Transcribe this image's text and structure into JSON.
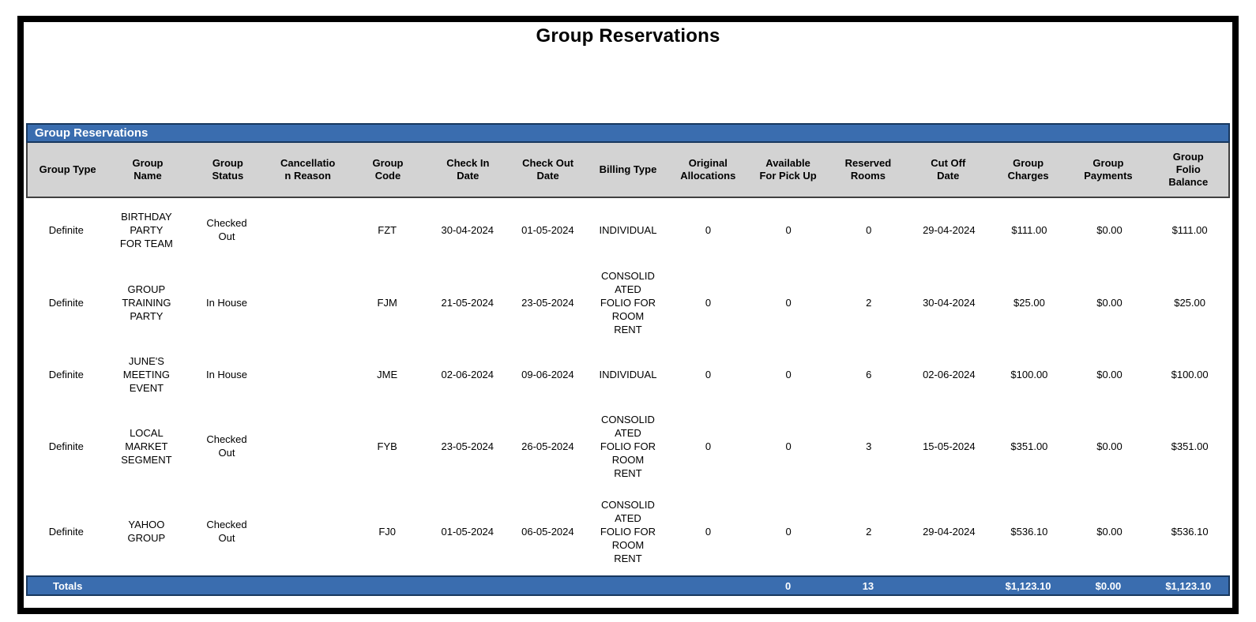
{
  "report": {
    "title": "Group Reservations",
    "section_header": "Group Reservations",
    "columns": [
      "Group Type",
      "Group\nName",
      "Group\nStatus",
      "Cancellatio\nn Reason",
      "Group\nCode",
      "Check In\nDate",
      "Check Out\nDate",
      "Billing Type",
      "Original\nAllocations",
      "Available\nFor Pick Up",
      "Reserved\nRooms",
      "Cut Off\nDate",
      "Group\nCharges",
      "Group\nPayments",
      "Group\nFolio\nBalance"
    ],
    "rows": [
      [
        "Definite",
        "BIRTHDAY\nPARTY\nFOR TEAM",
        "Checked\nOut",
        "",
        "FZT",
        "30-04-2024",
        "01-05-2024",
        "INDIVIDUAL",
        "0",
        "0",
        "0",
        "29-04-2024",
        "$111.00",
        "$0.00",
        "$111.00"
      ],
      [
        "Definite",
        "GROUP\nTRAINING\nPARTY",
        "In House",
        "",
        "FJM",
        "21-05-2024",
        "23-05-2024",
        "CONSOLID\nATED\nFOLIO FOR\nROOM\nRENT",
        "0",
        "0",
        "2",
        "30-04-2024",
        "$25.00",
        "$0.00",
        "$25.00"
      ],
      [
        "Definite",
        "JUNE'S\nMEETING\nEVENT",
        "In House",
        "",
        "JME",
        "02-06-2024",
        "09-06-2024",
        "INDIVIDUAL",
        "0",
        "0",
        "6",
        "02-06-2024",
        "$100.00",
        "$0.00",
        "$100.00"
      ],
      [
        "Definite",
        "LOCAL\nMARKET\nSEGMENT",
        "Checked\nOut",
        "",
        "FYB",
        "23-05-2024",
        "26-05-2024",
        "CONSOLID\nATED\nFOLIO FOR\nROOM\nRENT",
        "0",
        "0",
        "3",
        "15-05-2024",
        "$351.00",
        "$0.00",
        "$351.00"
      ],
      [
        "Definite",
        "YAHOO\nGROUP",
        "Checked\nOut",
        "",
        "FJ0",
        "01-05-2024",
        "06-05-2024",
        "CONSOLID\nATED\nFOLIO FOR\nROOM\nRENT",
        "0",
        "0",
        "2",
        "29-04-2024",
        "$536.10",
        "$0.00",
        "$536.10"
      ]
    ],
    "totals": [
      "Totals",
      "",
      "",
      "",
      "",
      "",
      "",
      "",
      "",
      "0",
      "13",
      "",
      "$1,123.10",
      "$0.00",
      "$1,123.10"
    ]
  },
  "colors": {
    "accent_blue": "#3A6DAF",
    "dark_navy_border": "#17375E",
    "header_gray": "#D3D3D3",
    "page_border": "#000000"
  }
}
